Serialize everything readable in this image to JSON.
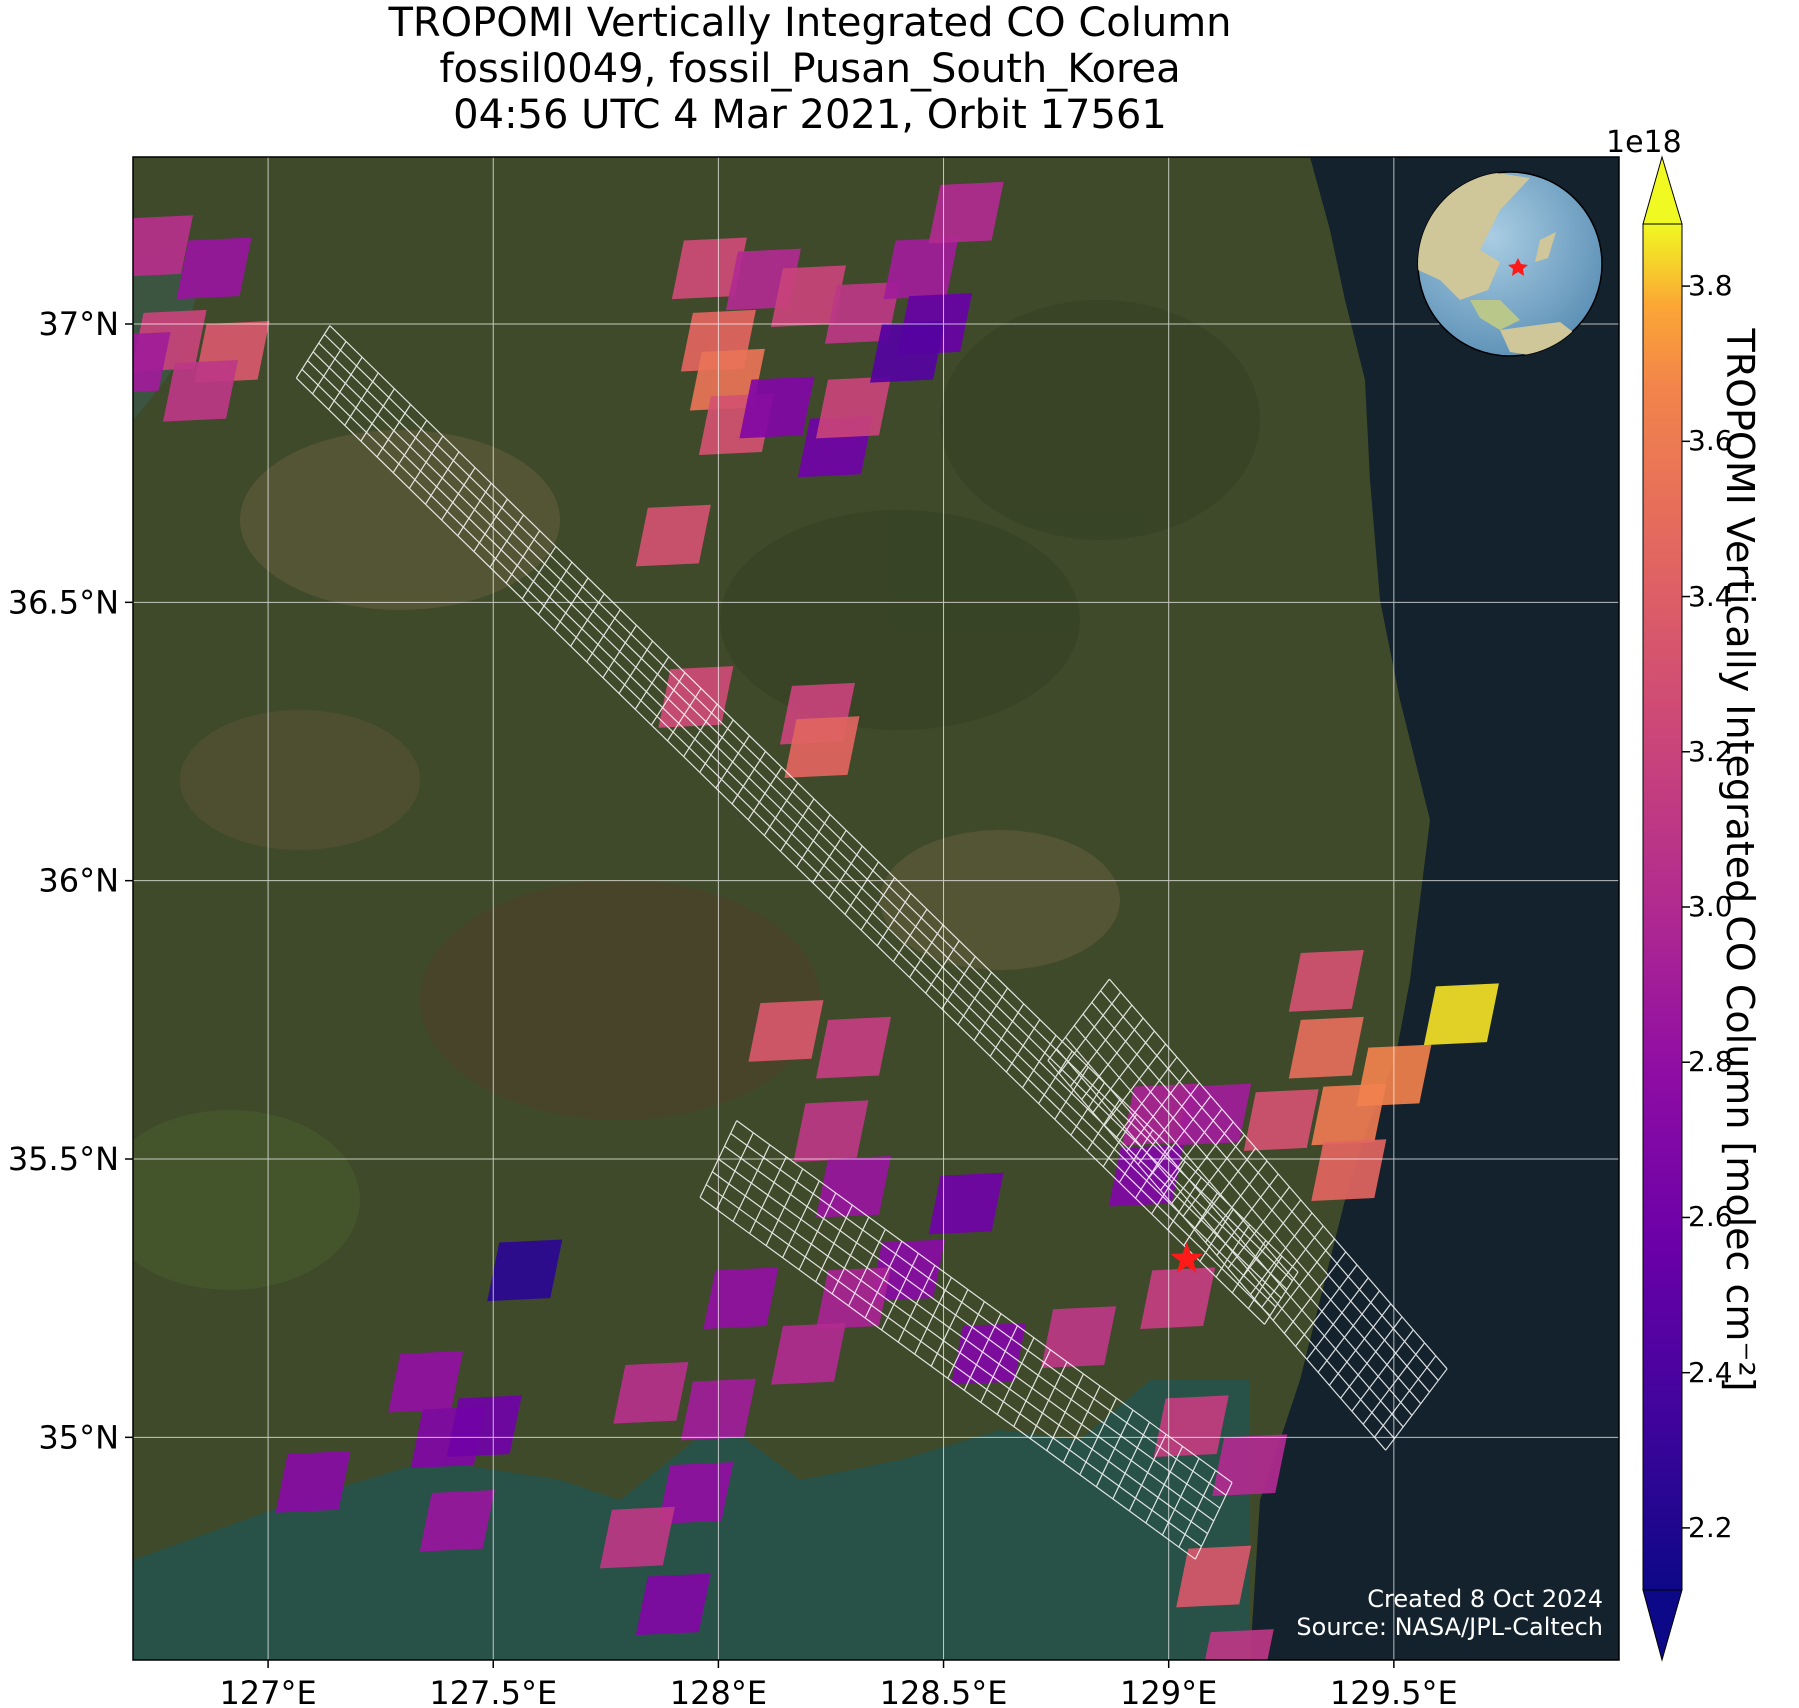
{
  "title": {
    "line1": "TROPOMI Vertically Integrated CO Column",
    "line2": "fossil0049, fossil_Pusan_South_Korea",
    "line3": "04:56 UTC 4 Mar 2021, Orbit 17561"
  },
  "map": {
    "lon_range": [
      126.7,
      130.0
    ],
    "lat_range": [
      34.6,
      37.3
    ],
    "lon_ticks": [
      127.0,
      127.5,
      128.0,
      128.5,
      129.0,
      129.5
    ],
    "lon_tick_labels": [
      "127°E",
      "127.5°E",
      "128°E",
      "128.5°E",
      "129°E",
      "129.5°E"
    ],
    "lat_ticks": [
      35.0,
      35.5,
      36.0,
      36.5,
      37.0
    ],
    "lat_tick_labels": [
      "35°N",
      "35.5°N",
      "36°N",
      "36.5°N",
      "37°N"
    ],
    "target": {
      "lon": 129.04,
      "lat": 35.32,
      "marker": "red-star"
    },
    "colors": {
      "sea": "#13222c",
      "land": "#3f4a2a",
      "grid": "#ffffff",
      "target": "#ff0000"
    }
  },
  "colorbar": {
    "label": "TROPOMI Vertically Integrated CO Column [molec cm⁻²]",
    "exponent": "1e18",
    "ticks": [
      2.2,
      2.4,
      2.6,
      2.8,
      3.0,
      3.2,
      3.4,
      3.6,
      3.8
    ],
    "tick_labels": [
      "2.2",
      "2.4",
      "2.6",
      "2.8",
      "3.0",
      "3.2",
      "3.4",
      "3.6",
      "3.8"
    ],
    "range": [
      2.12,
      3.88
    ],
    "colormap": "plasma",
    "extend": "both"
  },
  "credit": {
    "line1": "Created 8 Oct 2024",
    "line2": "Source: NASA/JPL-Caltech"
  },
  "chart_data": {
    "type": "heatmap",
    "units": "1e18 molec cm-2",
    "pixels": [
      {
        "lon": 126.75,
        "lat": 37.14,
        "value": 3.05
      },
      {
        "lon": 126.88,
        "lat": 37.1,
        "value": 2.85
      },
      {
        "lon": 126.78,
        "lat": 36.97,
        "value": 3.2
      },
      {
        "lon": 126.92,
        "lat": 36.95,
        "value": 3.35
      },
      {
        "lon": 126.7,
        "lat": 36.93,
        "value": 2.9
      },
      {
        "lon": 126.85,
        "lat": 36.88,
        "value": 3.1
      },
      {
        "lon": 127.98,
        "lat": 37.1,
        "value": 3.25
      },
      {
        "lon": 128.1,
        "lat": 37.08,
        "value": 3.0
      },
      {
        "lon": 128.2,
        "lat": 37.05,
        "value": 3.2
      },
      {
        "lon": 128.0,
        "lat": 36.97,
        "value": 3.45
      },
      {
        "lon": 128.02,
        "lat": 36.9,
        "value": 3.55
      },
      {
        "lon": 128.04,
        "lat": 36.82,
        "value": 3.3
      },
      {
        "lon": 128.13,
        "lat": 36.85,
        "value": 2.7
      },
      {
        "lon": 128.26,
        "lat": 36.78,
        "value": 2.6
      },
      {
        "lon": 128.3,
        "lat": 36.85,
        "value": 3.2
      },
      {
        "lon": 128.32,
        "lat": 37.02,
        "value": 3.1
      },
      {
        "lon": 128.45,
        "lat": 37.1,
        "value": 2.9
      },
      {
        "lon": 128.48,
        "lat": 37.0,
        "value": 2.55
      },
      {
        "lon": 128.42,
        "lat": 36.95,
        "value": 2.45
      },
      {
        "lon": 128.55,
        "lat": 37.2,
        "value": 3.0
      },
      {
        "lon": 127.9,
        "lat": 36.62,
        "value": 3.3
      },
      {
        "lon": 127.95,
        "lat": 36.33,
        "value": 3.25
      },
      {
        "lon": 128.22,
        "lat": 36.3,
        "value": 3.2
      },
      {
        "lon": 128.23,
        "lat": 36.24,
        "value": 3.45
      },
      {
        "lon": 128.15,
        "lat": 35.73,
        "value": 3.35
      },
      {
        "lon": 128.3,
        "lat": 35.7,
        "value": 3.15
      },
      {
        "lon": 128.25,
        "lat": 35.55,
        "value": 3.1
      },
      {
        "lon": 128.3,
        "lat": 35.45,
        "value": 2.85
      },
      {
        "lon": 128.55,
        "lat": 35.42,
        "value": 2.6
      },
      {
        "lon": 128.42,
        "lat": 35.3,
        "value": 2.75
      },
      {
        "lon": 128.3,
        "lat": 35.25,
        "value": 2.95
      },
      {
        "lon": 128.05,
        "lat": 35.25,
        "value": 2.8
      },
      {
        "lon": 128.2,
        "lat": 35.15,
        "value": 3.0
      },
      {
        "lon": 127.85,
        "lat": 35.08,
        "value": 3.05
      },
      {
        "lon": 128.0,
        "lat": 35.05,
        "value": 2.9
      },
      {
        "lon": 127.95,
        "lat": 34.9,
        "value": 2.8
      },
      {
        "lon": 127.82,
        "lat": 34.82,
        "value": 3.1
      },
      {
        "lon": 127.9,
        "lat": 34.7,
        "value": 2.7
      },
      {
        "lon": 128.6,
        "lat": 35.15,
        "value": 2.7
      },
      {
        "lon": 128.8,
        "lat": 35.18,
        "value": 3.1
      },
      {
        "lon": 129.02,
        "lat": 35.25,
        "value": 3.15
      },
      {
        "lon": 129.05,
        "lat": 35.02,
        "value": 3.15
      },
      {
        "lon": 129.18,
        "lat": 34.95,
        "value": 3.0
      },
      {
        "lon": 129.1,
        "lat": 34.75,
        "value": 3.35
      },
      {
        "lon": 129.15,
        "lat": 34.6,
        "value": 3.1
      },
      {
        "lon": 128.98,
        "lat": 35.58,
        "value": 2.95
      },
      {
        "lon": 128.95,
        "lat": 35.47,
        "value": 2.7
      },
      {
        "lon": 129.1,
        "lat": 35.58,
        "value": 2.9
      },
      {
        "lon": 129.25,
        "lat": 35.57,
        "value": 3.3
      },
      {
        "lon": 129.35,
        "lat": 35.82,
        "value": 3.3
      },
      {
        "lon": 129.35,
        "lat": 35.7,
        "value": 3.5
      },
      {
        "lon": 129.4,
        "lat": 35.58,
        "value": 3.6
      },
      {
        "lon": 129.4,
        "lat": 35.48,
        "value": 3.45
      },
      {
        "lon": 129.5,
        "lat": 35.65,
        "value": 3.65
      },
      {
        "lon": 129.65,
        "lat": 35.76,
        "value": 3.85
      },
      {
        "lon": 127.35,
        "lat": 35.1,
        "value": 2.8
      },
      {
        "lon": 127.4,
        "lat": 35.0,
        "value": 2.7
      },
      {
        "lon": 127.48,
        "lat": 35.02,
        "value": 2.6
      },
      {
        "lon": 127.42,
        "lat": 34.85,
        "value": 2.85
      },
      {
        "lon": 127.1,
        "lat": 34.92,
        "value": 2.75
      },
      {
        "lon": 127.57,
        "lat": 35.3,
        "value": 2.25
      }
    ]
  }
}
